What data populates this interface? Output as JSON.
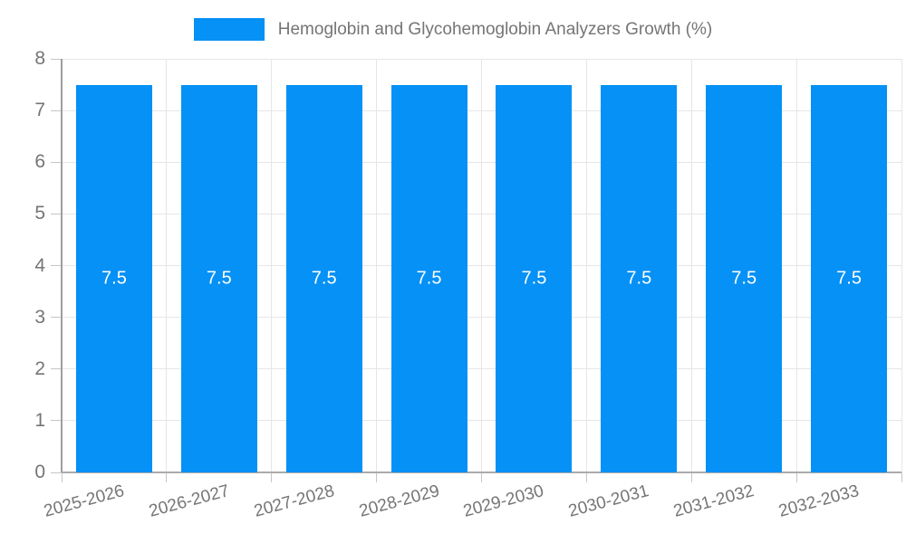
{
  "chart_data": {
    "type": "bar",
    "legend_label": "Hemoglobin and Glycohemoglobin Analyzers Growth (%)",
    "legend_position": "top",
    "categories": [
      "2025-2026",
      "2026-2027",
      "2027-2028",
      "2028-2029",
      "2029-2030",
      "2030-2031",
      "2031-2032",
      "2032-2033"
    ],
    "values": [
      7.5,
      7.5,
      7.5,
      7.5,
      7.5,
      7.5,
      7.5,
      7.5
    ],
    "bar_value_labels": [
      "7.5",
      "7.5",
      "7.5",
      "7.5",
      "7.5",
      "7.5",
      "7.5",
      "7.5"
    ],
    "yticks": [
      0,
      1,
      2,
      3,
      4,
      5,
      6,
      7,
      8
    ],
    "ylim": [
      0,
      8
    ],
    "xlabel": "",
    "ylabel": "",
    "grid": true,
    "colors": {
      "bar": "#0591f5",
      "bar_label": "#ffffff",
      "axis_text": "#757575",
      "grid": "#e6e6e6",
      "tick": "#c6c6c6"
    }
  }
}
